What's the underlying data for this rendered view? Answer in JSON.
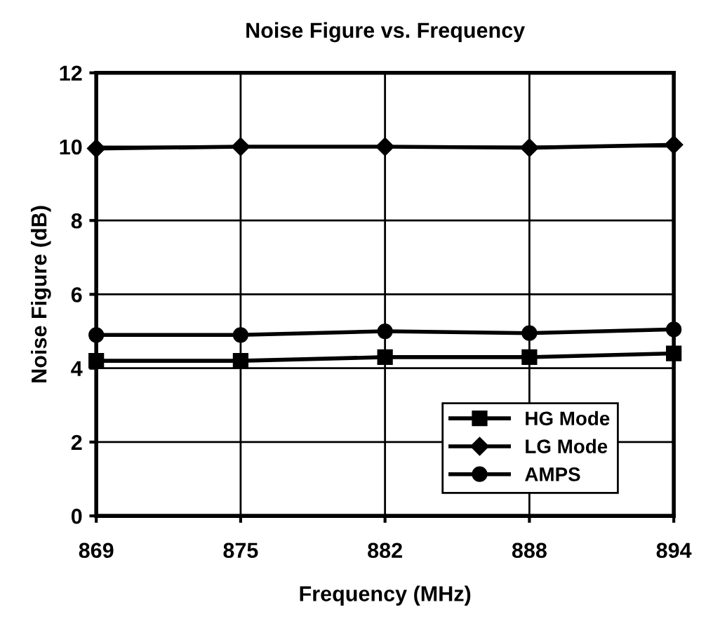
{
  "chart_data": {
    "type": "line",
    "title": "Noise Figure vs. Frequency",
    "xlabel": "Frequency (MHz)",
    "ylabel": "Noise Figure (dB)",
    "categories": [
      "869",
      "875",
      "882",
      "888",
      "894"
    ],
    "series": [
      {
        "name": "HG Mode",
        "color": "#000000",
        "marker": "square",
        "values": [
          4.2,
          4.2,
          4.3,
          4.3,
          4.4
        ]
      },
      {
        "name": "LG Mode",
        "color": "#000000",
        "marker": "diamond",
        "values": [
          9.95,
          10.0,
          10.0,
          9.97,
          10.05
        ]
      },
      {
        "name": "AMPS",
        "color": "#000000",
        "marker": "circle",
        "values": [
          4.9,
          4.9,
          5.0,
          4.95,
          5.05
        ]
      }
    ],
    "ylim": [
      0,
      12
    ],
    "yticks": [
      0,
      2,
      4,
      6,
      8,
      10,
      12
    ],
    "grid": true,
    "legend": "bottom right",
    "line_style": "solid"
  }
}
